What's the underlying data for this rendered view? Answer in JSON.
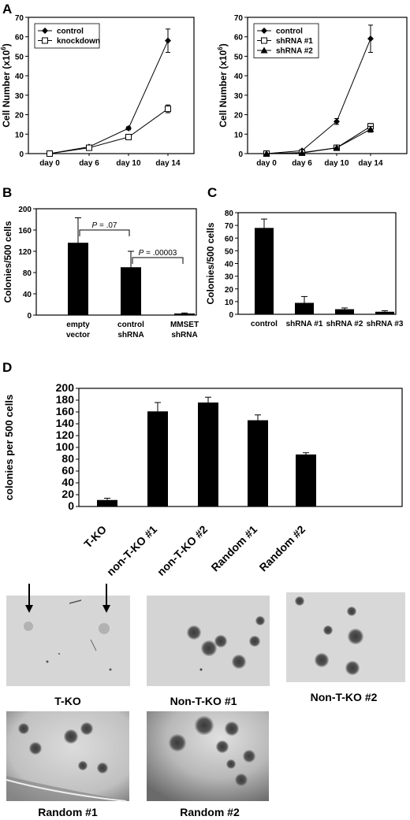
{
  "panels": {
    "A": "A",
    "B": "B",
    "C": "C",
    "D": "D"
  },
  "chart_data": [
    {
      "id": "A-left",
      "type": "line",
      "ylabel": "Cell Number (x10⁶)",
      "x": [
        "day 0",
        "day 6",
        "day 10",
        "day 14"
      ],
      "ylim": [
        0,
        70
      ],
      "yticks": [
        0,
        10,
        20,
        30,
        40,
        50,
        60,
        70
      ],
      "grid": false,
      "legend_position": "top-left",
      "series": [
        {
          "name": "control",
          "marker": "diamond",
          "values": [
            0,
            3.5,
            13,
            58
          ],
          "errors": [
            0,
            0.4,
            0.8,
            6
          ]
        },
        {
          "name": "knockdown",
          "marker": "open-square",
          "values": [
            0,
            3,
            8.5,
            23
          ],
          "errors": [
            0,
            0.3,
            0.6,
            2
          ]
        }
      ]
    },
    {
      "id": "A-right",
      "type": "line",
      "ylabel": "Cell Number (x10⁶)",
      "x": [
        "day 0",
        "day 6",
        "day 10",
        "day 14"
      ],
      "ylim": [
        0,
        70
      ],
      "yticks": [
        0,
        10,
        20,
        30,
        40,
        50,
        60,
        70
      ],
      "grid": false,
      "legend_position": "top-left",
      "series": [
        {
          "name": "control",
          "marker": "diamond",
          "values": [
            0,
            1.5,
            16.5,
            59
          ],
          "errors": [
            0,
            0.3,
            1.5,
            7
          ]
        },
        {
          "name": "shRNA #1",
          "marker": "open-square",
          "values": [
            0,
            0.5,
            3,
            14
          ],
          "errors": [
            0,
            0.2,
            0.7,
            1.5
          ]
        },
        {
          "name": "shRNA #2",
          "marker": "triangle",
          "values": [
            0,
            0.3,
            3,
            12.5
          ],
          "errors": [
            0,
            0.2,
            0.5,
            1.5
          ]
        }
      ]
    },
    {
      "id": "B",
      "type": "bar",
      "ylabel": "Colonies/500 cells",
      "categories": [
        [
          "empty",
          "vector"
        ],
        [
          "control",
          "shRNA"
        ],
        [
          "MMSET",
          "shRNA"
        ]
      ],
      "values": [
        136,
        90,
        3
      ],
      "errors": [
        47,
        30,
        1
      ],
      "ylim": [
        0,
        200
      ],
      "yticks": [
        0,
        40,
        80,
        120,
        160,
        200
      ],
      "grid": false,
      "annotations": [
        {
          "label": "P = .07",
          "from": 0,
          "to": 1
        },
        {
          "label": "P = .00003",
          "from": 1,
          "to": 2
        }
      ]
    },
    {
      "id": "C",
      "type": "bar",
      "ylabel": "Colonies/500 cells",
      "categories": [
        "control",
        "shRNA #1",
        "shRNA #2",
        "shRNA #3"
      ],
      "values": [
        68,
        9,
        4,
        2
      ],
      "errors": [
        7,
        5,
        1,
        0.8
      ],
      "ylim": [
        0,
        80
      ],
      "yticks": [
        0,
        10,
        20,
        30,
        40,
        50,
        60,
        70,
        80
      ],
      "grid": false
    },
    {
      "id": "D",
      "type": "bar",
      "ylabel": "colonies per 500 cells",
      "categories": [
        "T-KO",
        "non-T-KO #1",
        "non-T-KO #2",
        "Random #1",
        "Random #2"
      ],
      "values": [
        11,
        161,
        176,
        146,
        88
      ],
      "errors": [
        3,
        15,
        9,
        9,
        3
      ],
      "ylim": [
        0,
        200
      ],
      "yticks": [
        0,
        20,
        40,
        60,
        80,
        100,
        120,
        140,
        160,
        180,
        200
      ],
      "grid": false
    }
  ],
  "micrographs": [
    {
      "label": "T-KO"
    },
    {
      "label": "Non-T-KO #1"
    },
    {
      "label": "Non-T-KO #2"
    },
    {
      "label": "Random #1"
    },
    {
      "label": "Random #2"
    }
  ]
}
